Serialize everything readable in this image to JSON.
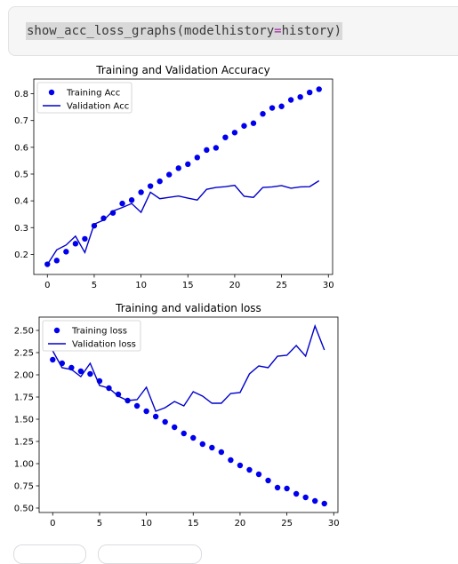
{
  "code": {
    "func": "show_acc_loss_graphs",
    "open": "(",
    "param": "modelhistory",
    "op": "=",
    "arg": "history",
    "close": ")"
  },
  "colors": {
    "marker": "#0000ee",
    "line": "#0000cc"
  },
  "chart_data": [
    {
      "type": "line",
      "title": "Training and Validation Accuracy",
      "xlabel": "",
      "ylabel": "",
      "xlim": [
        -1.45,
        30.45
      ],
      "ylim": [
        0.125,
        0.855
      ],
      "xticks": [
        0,
        5,
        10,
        15,
        20,
        25,
        30
      ],
      "yticks": [
        0.2,
        0.3,
        0.4,
        0.5,
        0.6,
        0.7,
        0.8
      ],
      "ytick_labels": [
        "0.2",
        "0.3",
        "0.4",
        "0.5",
        "0.6",
        "0.7",
        "0.8"
      ],
      "grid": false,
      "legend_position": "upper-left",
      "series": [
        {
          "name": "Training Acc",
          "style": "markers",
          "x": [
            0,
            1,
            2,
            3,
            4,
            5,
            6,
            7,
            8,
            9,
            10,
            11,
            12,
            13,
            14,
            15,
            16,
            17,
            18,
            19,
            20,
            21,
            22,
            23,
            24,
            25,
            26,
            27,
            28,
            29
          ],
          "y": [
            0.163,
            0.177,
            0.21,
            0.24,
            0.258,
            0.307,
            0.335,
            0.355,
            0.39,
            0.403,
            0.432,
            0.455,
            0.473,
            0.498,
            0.522,
            0.537,
            0.562,
            0.59,
            0.598,
            0.637,
            0.655,
            0.68,
            0.69,
            0.725,
            0.747,
            0.753,
            0.777,
            0.788,
            0.805,
            0.817
          ]
        },
        {
          "name": "Validation Acc",
          "style": "line",
          "x": [
            0,
            1,
            2,
            3,
            4,
            5,
            6,
            7,
            8,
            9,
            10,
            11,
            12,
            13,
            14,
            15,
            16,
            17,
            18,
            19,
            20,
            21,
            22,
            23,
            24,
            25,
            26,
            27,
            28,
            29
          ],
          "y": [
            0.162,
            0.217,
            0.235,
            0.268,
            0.207,
            0.313,
            0.328,
            0.362,
            0.375,
            0.39,
            0.357,
            0.432,
            0.408,
            0.413,
            0.418,
            0.41,
            0.403,
            0.443,
            0.45,
            0.453,
            0.458,
            0.417,
            0.413,
            0.45,
            0.452,
            0.457,
            0.447,
            0.452,
            0.453,
            0.475
          ]
        }
      ]
    },
    {
      "type": "line",
      "title": "Training and validation loss",
      "xlabel": "",
      "ylabel": "",
      "xlim": [
        -1.45,
        30.45
      ],
      "ylim": [
        0.45,
        2.65
      ],
      "xticks": [
        0,
        5,
        10,
        15,
        20,
        25,
        30
      ],
      "yticks": [
        0.5,
        0.75,
        1.0,
        1.25,
        1.5,
        1.75,
        2.0,
        2.25,
        2.5
      ],
      "ytick_labels": [
        "0.50",
        "0.75",
        "1.00",
        "1.25",
        "1.50",
        "1.75",
        "2.00",
        "2.25",
        "2.50"
      ],
      "grid": false,
      "legend_position": "upper-left",
      "series": [
        {
          "name": "Training loss",
          "style": "markers",
          "x": [
            0,
            1,
            2,
            3,
            4,
            5,
            6,
            7,
            8,
            9,
            10,
            11,
            12,
            13,
            14,
            15,
            16,
            17,
            18,
            19,
            20,
            21,
            22,
            23,
            24,
            25,
            26,
            27,
            28,
            29
          ],
          "y": [
            2.17,
            2.13,
            2.08,
            2.04,
            2.01,
            1.93,
            1.85,
            1.78,
            1.71,
            1.65,
            1.59,
            1.53,
            1.47,
            1.41,
            1.34,
            1.29,
            1.22,
            1.18,
            1.13,
            1.04,
            0.98,
            0.93,
            0.88,
            0.81,
            0.73,
            0.72,
            0.66,
            0.62,
            0.58,
            0.55
          ]
        },
        {
          "name": "Validation loss",
          "style": "line",
          "x": [
            0,
            1,
            2,
            3,
            4,
            5,
            6,
            7,
            8,
            9,
            10,
            11,
            12,
            13,
            14,
            15,
            16,
            17,
            18,
            19,
            20,
            21,
            22,
            23,
            24,
            25,
            26,
            27,
            28,
            29
          ],
          "y": [
            2.27,
            2.08,
            2.06,
            1.98,
            2.13,
            1.88,
            1.85,
            1.76,
            1.71,
            1.72,
            1.86,
            1.59,
            1.63,
            1.7,
            1.65,
            1.81,
            1.76,
            1.68,
            1.68,
            1.79,
            1.8,
            2.01,
            2.1,
            2.08,
            2.21,
            2.22,
            2.33,
            2.21,
            2.55,
            2.28
          ]
        }
      ]
    }
  ]
}
